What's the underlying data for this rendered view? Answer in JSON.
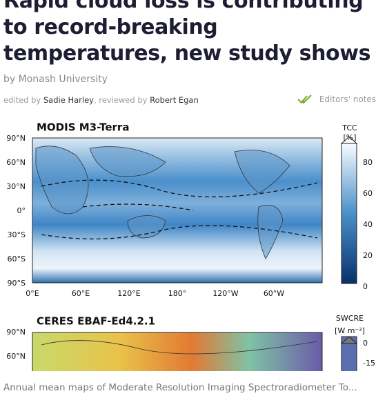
{
  "article": {
    "title_lines": [
      "Rapid cloud loss is contributing",
      "to record-breaking",
      "temperatures, new study shows"
    ],
    "byline_prefix": "by",
    "byline_source": "Monash University",
    "edited_prefix": "edited by",
    "editor": "Sadie Harley",
    "reviewed_prefix": ", reviewed by",
    "reviewer": "Robert Egan",
    "editors_notes": "Editors' notes"
  },
  "figure": {
    "panels": [
      {
        "title": "MODIS M3-Terra",
        "y_labels": [
          "90°N",
          "60°N",
          "30°N",
          "0°",
          "30°S",
          "60°S",
          "90°S"
        ],
        "x_labels": [
          "0°E",
          "60°E",
          "120°E",
          "180°",
          "120°W",
          "60°W"
        ],
        "colorbar_label": [
          "TCC",
          "[%]"
        ],
        "colorbar_ticks": [
          80,
          60,
          40,
          20,
          0
        ]
      },
      {
        "title": "CERES EBAF-Ed4.2.1",
        "y_labels": [
          "90°N",
          "60°N"
        ],
        "colorbar_label": [
          "SWCRE",
          "[W m⁻²]"
        ],
        "colorbar_ticks": [
          0,
          -15
        ]
      }
    ],
    "caption": "Annual mean maps of Moderate Resolution Imaging Spectroradiometer To..."
  }
}
